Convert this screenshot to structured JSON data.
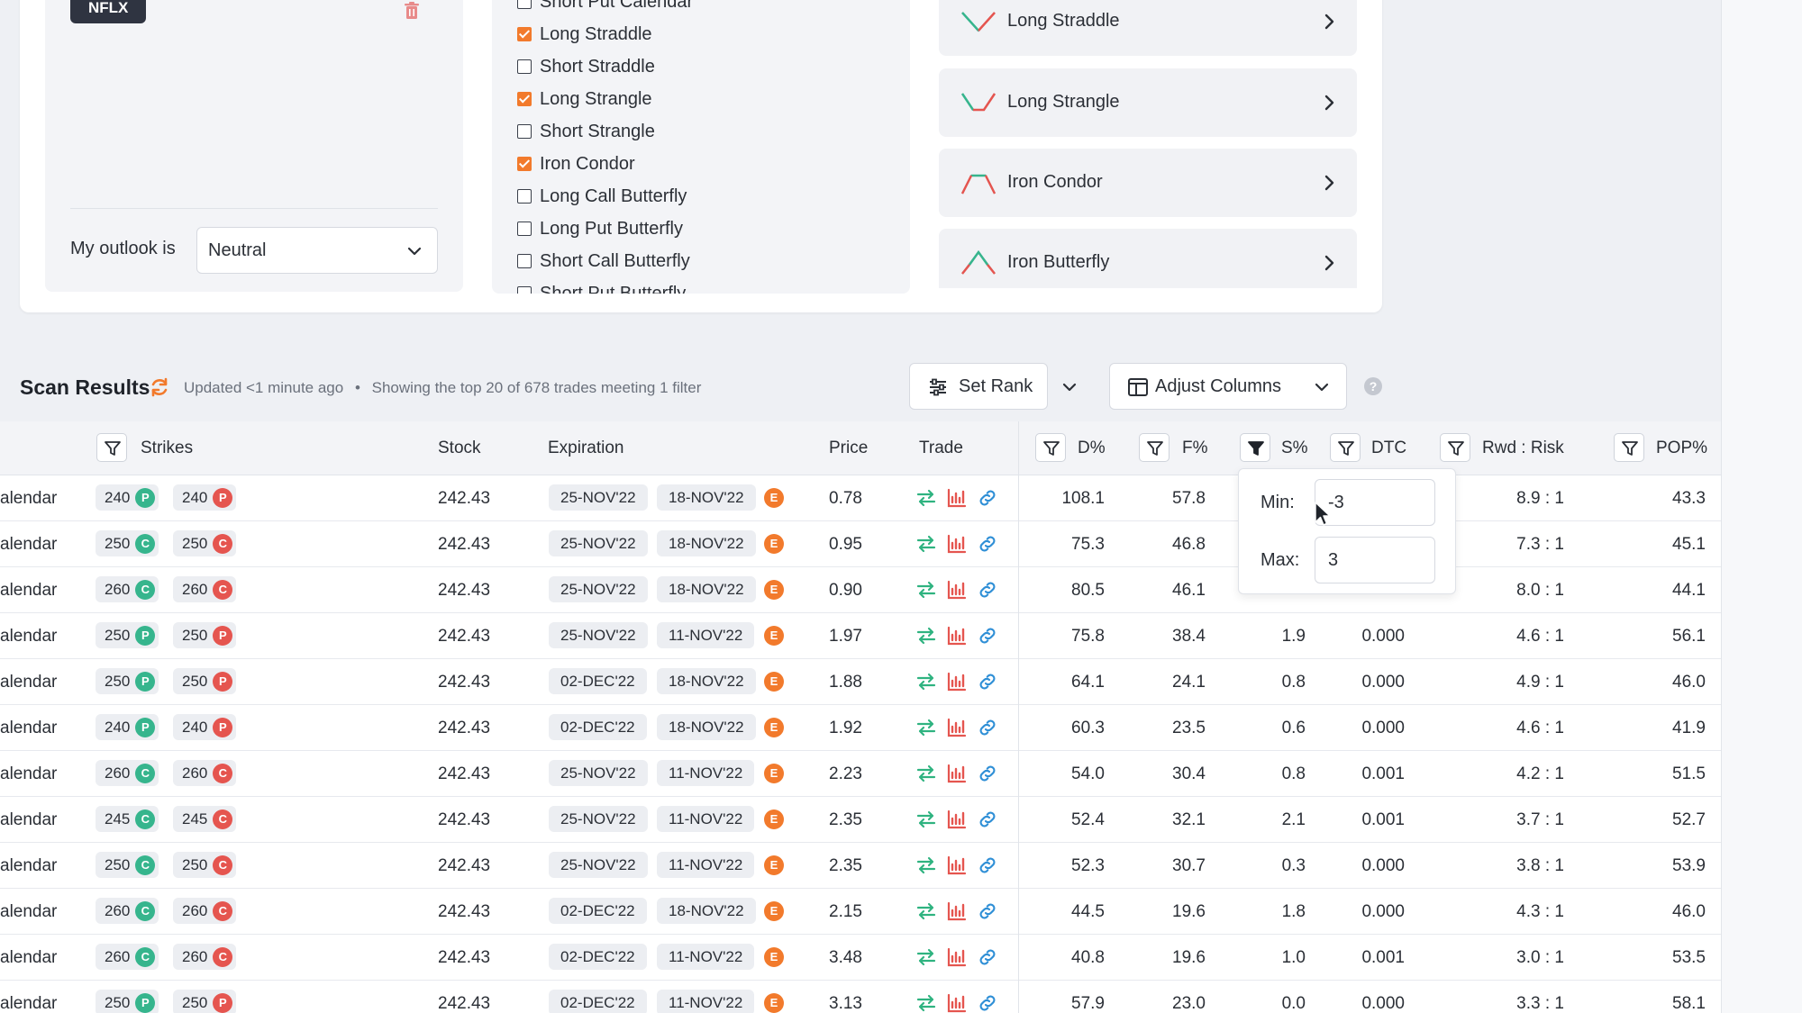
{
  "watchlist": {
    "ticker": "NFLX",
    "outlook_label": "My outlook is",
    "outlook_value": "Neutral"
  },
  "strategy_filters": [
    {
      "label": "Short Put Calendar",
      "checked": false
    },
    {
      "label": "Long Straddle",
      "checked": true
    },
    {
      "label": "Short Straddle",
      "checked": false
    },
    {
      "label": "Long Strangle",
      "checked": true
    },
    {
      "label": "Short Strangle",
      "checked": false
    },
    {
      "label": "Iron Condor",
      "checked": true
    },
    {
      "label": "Long Call Butterfly",
      "checked": false
    },
    {
      "label": "Long Put Butterfly",
      "checked": false
    },
    {
      "label": "Short Call Butterfly",
      "checked": false
    },
    {
      "label": "Short Put Butterfly",
      "checked": false
    }
  ],
  "strategy_cards": [
    {
      "label": "Long Straddle",
      "icon": "long-straddle-icon"
    },
    {
      "label": "Long Strangle",
      "icon": "long-strangle-icon"
    },
    {
      "label": "Iron Condor",
      "icon": "iron-condor-icon"
    },
    {
      "label": "Iron Butterfly",
      "icon": "iron-butterfly-icon"
    }
  ],
  "scan": {
    "title": "Scan Results",
    "updated": "Updated <1 minute ago",
    "separator": "•",
    "summary": "Showing the top 20 of 678 trades meeting 1 filter",
    "set_rank_label": "Set Rank",
    "adjust_columns_label": "Adjust Columns"
  },
  "columns": {
    "strikes": "Strikes",
    "stock": "Stock",
    "expiration": "Expiration",
    "price": "Price",
    "trade": "Trade",
    "d_pct": "D%",
    "f_pct": "F%",
    "s_pct": "S%",
    "dtc": "DTC",
    "rwd_risk": "Rwd : Risk",
    "pop_pct": "POP%"
  },
  "filter_popover": {
    "min_label": "Min:",
    "min_value": "-3",
    "max_label": "Max:",
    "max_value": "3"
  },
  "rows": [
    {
      "strategy": "alendar",
      "s1": "240",
      "t1": "P",
      "s2": "240",
      "t2": "P",
      "stock": "242.43",
      "exp1": "25-NOV'22",
      "exp2": "18-NOV'22",
      "e": "E",
      "price": "0.78",
      "d": "108.1",
      "f": "57.8",
      "s": "",
      "dtc": "",
      "rr": "8.9 : 1",
      "pop": "43.3"
    },
    {
      "strategy": "alendar",
      "s1": "250",
      "t1": "C",
      "s2": "250",
      "t2": "C",
      "stock": "242.43",
      "exp1": "25-NOV'22",
      "exp2": "18-NOV'22",
      "e": "E",
      "price": "0.95",
      "d": "75.3",
      "f": "46.8",
      "s": "",
      "dtc": "",
      "rr": "7.3 : 1",
      "pop": "45.1"
    },
    {
      "strategy": "alendar",
      "s1": "260",
      "t1": "C",
      "s2": "260",
      "t2": "C",
      "stock": "242.43",
      "exp1": "25-NOV'22",
      "exp2": "18-NOV'22",
      "e": "E",
      "price": "0.90",
      "d": "80.5",
      "f": "46.1",
      "s": "",
      "dtc": "",
      "rr": "8.0 : 1",
      "pop": "44.1"
    },
    {
      "strategy": "alendar",
      "s1": "250",
      "t1": "P",
      "s2": "250",
      "t2": "P",
      "stock": "242.43",
      "exp1": "25-NOV'22",
      "exp2": "11-NOV'22",
      "e": "E",
      "price": "1.97",
      "d": "75.8",
      "f": "38.4",
      "s": "1.9",
      "dtc": "0.000",
      "rr": "4.6 : 1",
      "pop": "56.1"
    },
    {
      "strategy": "alendar",
      "s1": "250",
      "t1": "P",
      "s2": "250",
      "t2": "P",
      "stock": "242.43",
      "exp1": "02-DEC'22",
      "exp2": "18-NOV'22",
      "e": "E",
      "price": "1.88",
      "d": "64.1",
      "f": "24.1",
      "s": "0.8",
      "dtc": "0.000",
      "rr": "4.9 : 1",
      "pop": "46.0"
    },
    {
      "strategy": "alendar",
      "s1": "240",
      "t1": "P",
      "s2": "240",
      "t2": "P",
      "stock": "242.43",
      "exp1": "02-DEC'22",
      "exp2": "18-NOV'22",
      "e": "E",
      "price": "1.92",
      "d": "60.3",
      "f": "23.5",
      "s": "0.6",
      "dtc": "0.000",
      "rr": "4.6 : 1",
      "pop": "41.9"
    },
    {
      "strategy": "alendar",
      "s1": "260",
      "t1": "C",
      "s2": "260",
      "t2": "C",
      "stock": "242.43",
      "exp1": "25-NOV'22",
      "exp2": "11-NOV'22",
      "e": "E",
      "price": "2.23",
      "d": "54.0",
      "f": "30.4",
      "s": "0.8",
      "dtc": "0.001",
      "rr": "4.2 : 1",
      "pop": "51.5"
    },
    {
      "strategy": "alendar",
      "s1": "245",
      "t1": "C",
      "s2": "245",
      "t2": "C",
      "stock": "242.43",
      "exp1": "25-NOV'22",
      "exp2": "11-NOV'22",
      "e": "E",
      "price": "2.35",
      "d": "52.4",
      "f": "32.1",
      "s": "2.1",
      "dtc": "0.001",
      "rr": "3.7 : 1",
      "pop": "52.7"
    },
    {
      "strategy": "alendar",
      "s1": "250",
      "t1": "C",
      "s2": "250",
      "t2": "C",
      "stock": "242.43",
      "exp1": "25-NOV'22",
      "exp2": "11-NOV'22",
      "e": "E",
      "price": "2.35",
      "d": "52.3",
      "f": "30.7",
      "s": "0.3",
      "dtc": "0.000",
      "rr": "3.8 : 1",
      "pop": "53.9"
    },
    {
      "strategy": "alendar",
      "s1": "260",
      "t1": "C",
      "s2": "260",
      "t2": "C",
      "stock": "242.43",
      "exp1": "02-DEC'22",
      "exp2": "18-NOV'22",
      "e": "E",
      "price": "2.15",
      "d": "44.5",
      "f": "19.6",
      "s": "1.8",
      "dtc": "0.000",
      "rr": "4.3 : 1",
      "pop": "46.0"
    },
    {
      "strategy": "alendar",
      "s1": "260",
      "t1": "C",
      "s2": "260",
      "t2": "C",
      "stock": "242.43",
      "exp1": "02-DEC'22",
      "exp2": "11-NOV'22",
      "e": "E",
      "price": "3.48",
      "d": "40.8",
      "f": "19.6",
      "s": "1.0",
      "dtc": "0.001",
      "rr": "3.0 : 1",
      "pop": "53.5"
    },
    {
      "strategy": "alendar",
      "s1": "250",
      "t1": "P",
      "s2": "250",
      "t2": "P",
      "stock": "242.43",
      "exp1": "02-DEC'22",
      "exp2": "11-NOV'22",
      "e": "E",
      "price": "3.13",
      "d": "57.9",
      "f": "23.0",
      "s": "0.0",
      "dtc": "0.000",
      "rr": "3.3 : 1",
      "pop": "58.1"
    }
  ],
  "colors": {
    "accent_orange": "#f27a2c",
    "call_green": "#36b58d",
    "put_red": "#e5554f",
    "trade_green": "#2fb380",
    "trade_red": "#e5554f",
    "link_blue": "#2f8fd6"
  }
}
